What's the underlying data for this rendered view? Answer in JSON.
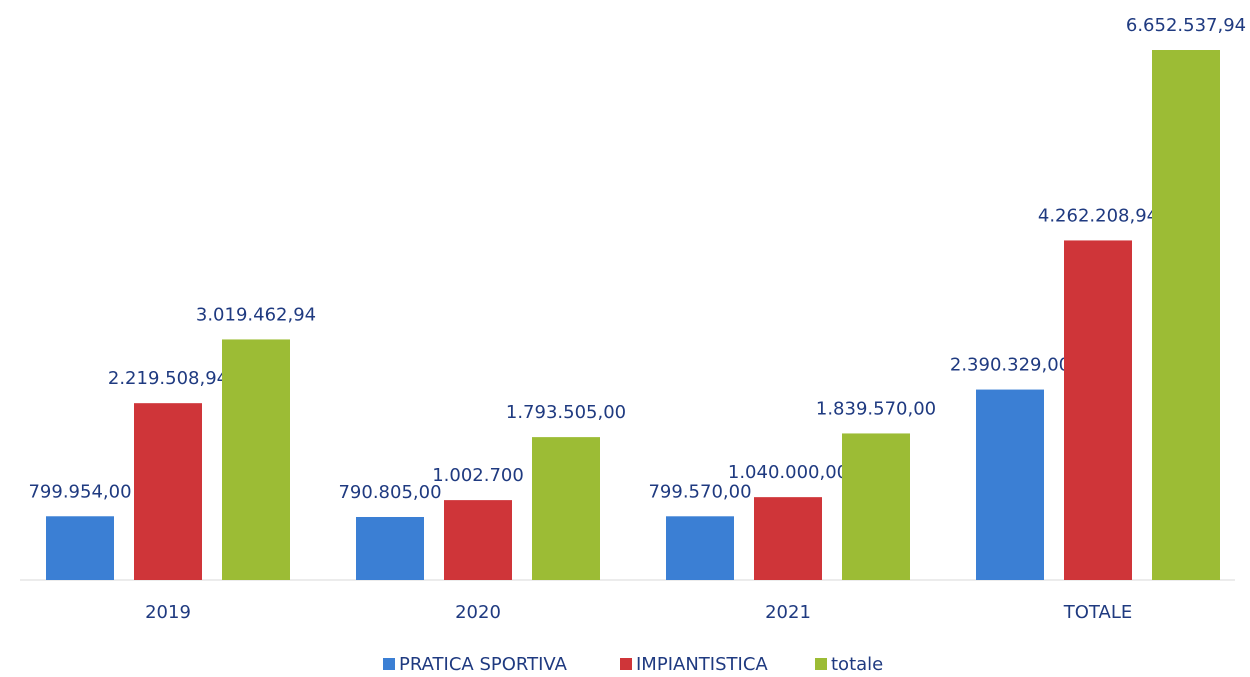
{
  "chart_data": {
    "type": "bar",
    "categories": [
      "2019",
      "2020",
      "2021",
      "TOTALE"
    ],
    "series": [
      {
        "name": "PRATICA SPORTIVA",
        "color": "#3b7fd4",
        "values": [
          799954.0,
          790805.0,
          799570.0,
          2390329.0
        ],
        "value_labels": [
          "799.954,00",
          "790.805,00",
          "799.570,00",
          "2.390.329,00"
        ]
      },
      {
        "name": "IMPIANTISTICA",
        "color": "#cf3539",
        "values": [
          2219508.94,
          1002700,
          1040000.0,
          4262208.94
        ],
        "value_labels": [
          "2.219.508,94",
          "1.002.700",
          "1.040.000,00",
          "4.262.208,94"
        ]
      },
      {
        "name": "totale",
        "color": "#9cbc35",
        "values": [
          3019462.94,
          1793505.0,
          1839570.0,
          6652537.94
        ],
        "value_labels": [
          "3.019.462,94",
          "1.793.505,00",
          "1.839.570,00",
          "6.652.537,94"
        ]
      }
    ],
    "legend": "bottom"
  }
}
